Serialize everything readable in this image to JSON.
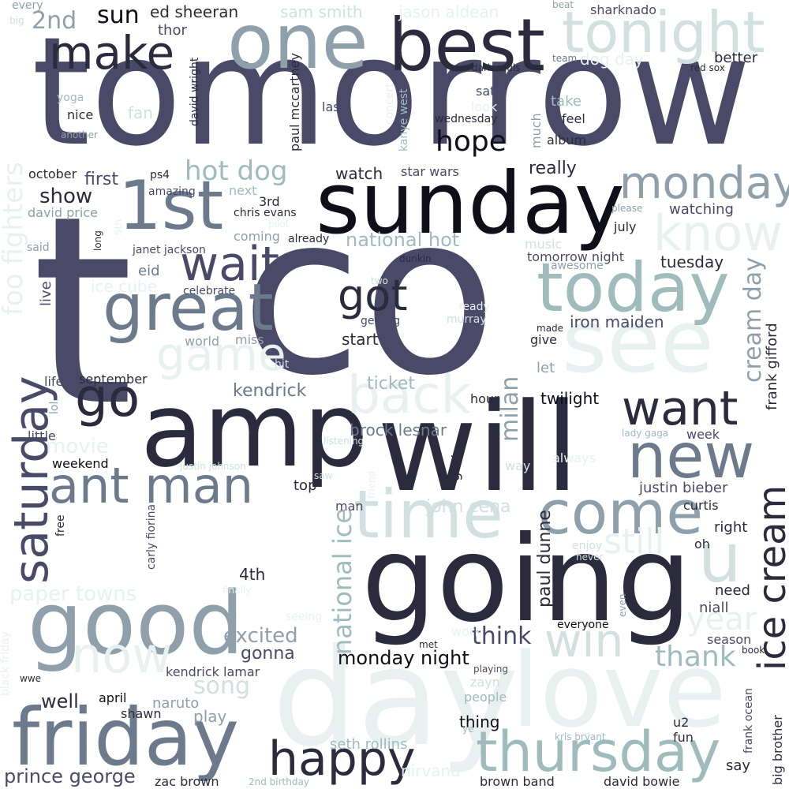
{
  "palette": {
    "darkest": "#0f0f1a",
    "dark": "#2b2b3d",
    "slate": "#4a4a68",
    "steel": "#6d7a8c",
    "grey_blue": "#8fa0aa",
    "sage": "#9fbbbb",
    "pale": "#d2e0df",
    "faint": "#e9f1f0"
  },
  "words": [
    {
      "text": "tomorrow"
    },
    {
      "text": "t"
    },
    {
      "text": "co"
    },
    {
      "text": "will"
    },
    {
      "text": "going"
    },
    {
      "text": "amp"
    },
    {
      "text": "sunday"
    },
    {
      "text": "day"
    },
    {
      "text": "love"
    },
    {
      "text": "good"
    },
    {
      "text": "friday"
    },
    {
      "text": "best"
    },
    {
      "text": "one"
    },
    {
      "text": "see"
    },
    {
      "text": "tonight"
    },
    {
      "text": "1st"
    },
    {
      "text": "great"
    },
    {
      "text": "today"
    },
    {
      "text": "time"
    },
    {
      "text": "new"
    },
    {
      "text": "come"
    },
    {
      "text": "thursday"
    },
    {
      "text": "u"
    },
    {
      "text": "monday"
    },
    {
      "text": "know"
    },
    {
      "text": "ant man"
    },
    {
      "text": "saturday"
    },
    {
      "text": "happy"
    },
    {
      "text": "ice cream"
    },
    {
      "text": "win"
    },
    {
      "text": "want"
    },
    {
      "text": "go"
    },
    {
      "text": "make"
    },
    {
      "text": "wait"
    },
    {
      "text": "got"
    },
    {
      "text": "hope"
    },
    {
      "text": "game"
    },
    {
      "text": "back"
    },
    {
      "text": "now"
    },
    {
      "text": "still"
    },
    {
      "text": "national ice"
    },
    {
      "text": "cream day"
    },
    {
      "text": "foo fighters"
    },
    {
      "text": "paper towns"
    },
    {
      "text": "thank"
    },
    {
      "text": "year"
    },
    {
      "text": "hot dog"
    },
    {
      "text": "milan"
    },
    {
      "text": "paul dunne"
    },
    {
      "text": "prince george"
    },
    {
      "text": "monday night"
    },
    {
      "text": "excited"
    },
    {
      "text": "think"
    },
    {
      "text": "song"
    },
    {
      "text": "kendrick"
    },
    {
      "text": "sun"
    },
    {
      "text": "2nd"
    },
    {
      "text": "ed sheeran"
    },
    {
      "text": "sam smith"
    },
    {
      "text": "jason aldean"
    },
    {
      "text": "sharknado"
    },
    {
      "text": "every"
    },
    {
      "text": "big"
    },
    {
      "text": "beat"
    },
    {
      "text": "thor"
    },
    {
      "text": "dog day"
    },
    {
      "text": "team"
    },
    {
      "text": "better"
    },
    {
      "text": "dark souls"
    },
    {
      "text": "red sox"
    },
    {
      "text": "david wright"
    },
    {
      "text": "paul mccartney"
    },
    {
      "text": "concert"
    },
    {
      "text": "kanye west"
    },
    {
      "text": "yoga"
    },
    {
      "text": "nice"
    },
    {
      "text": "fan"
    },
    {
      "text": "last"
    },
    {
      "text": "look"
    },
    {
      "text": "take"
    },
    {
      "text": "sat"
    },
    {
      "text": "much"
    },
    {
      "text": "feel"
    },
    {
      "text": "wednesday"
    },
    {
      "text": "album"
    },
    {
      "text": "another"
    },
    {
      "text": "october"
    },
    {
      "text": "ps4"
    },
    {
      "text": "first"
    },
    {
      "text": "show"
    },
    {
      "text": "amazing"
    },
    {
      "text": "next"
    },
    {
      "text": "watch"
    },
    {
      "text": "star wars"
    },
    {
      "text": "really"
    },
    {
      "text": "david price"
    },
    {
      "text": "3rd"
    },
    {
      "text": "chris evans"
    },
    {
      "text": "watching"
    },
    {
      "text": "please"
    },
    {
      "text": "5th"
    },
    {
      "text": "long"
    },
    {
      "text": "said"
    },
    {
      "text": "coming"
    },
    {
      "text": "already"
    },
    {
      "text": "national hot"
    },
    {
      "text": "july"
    },
    {
      "text": "janet jackson"
    },
    {
      "text": "dunkin"
    },
    {
      "text": "music"
    },
    {
      "text": "tomorrow night"
    },
    {
      "text": "tuesday"
    },
    {
      "text": "two"
    },
    {
      "text": "awesome"
    },
    {
      "text": "ice cube"
    },
    {
      "text": "eid"
    },
    {
      "text": "celebrate"
    },
    {
      "text": "live"
    },
    {
      "text": "ready"
    },
    {
      "text": "getting"
    },
    {
      "text": "murray"
    },
    {
      "text": "iron maiden"
    },
    {
      "text": "made"
    },
    {
      "text": "give"
    },
    {
      "text": "world"
    },
    {
      "text": "miss"
    },
    {
      "text": "start"
    },
    {
      "text": "frank gifford"
    },
    {
      "text": "hit"
    },
    {
      "text": "let"
    },
    {
      "text": "life"
    },
    {
      "text": "september"
    },
    {
      "text": "ticket"
    },
    {
      "text": "lol"
    },
    {
      "text": "hour"
    },
    {
      "text": "twilight"
    },
    {
      "text": "little"
    },
    {
      "text": "brock lesnar"
    },
    {
      "text": "listening"
    },
    {
      "text": "guy"
    },
    {
      "text": "lady gaga"
    },
    {
      "text": "week"
    },
    {
      "text": "movie"
    },
    {
      "text": "always"
    },
    {
      "text": "weekend"
    },
    {
      "text": "justin johnson"
    },
    {
      "text": "saw"
    },
    {
      "text": "friend"
    },
    {
      "text": "way"
    },
    {
      "text": "carly fiorina"
    },
    {
      "text": "top"
    },
    {
      "text": "justin bieber"
    },
    {
      "text": "free"
    },
    {
      "text": "man"
    },
    {
      "text": "john cena"
    },
    {
      "text": "curtis"
    },
    {
      "text": "right"
    },
    {
      "text": "oh"
    },
    {
      "text": "enjoy"
    },
    {
      "text": "never"
    },
    {
      "text": "finally"
    },
    {
      "text": "4th"
    },
    {
      "text": "need"
    },
    {
      "text": "even"
    },
    {
      "text": "niall"
    },
    {
      "text": "seeing"
    },
    {
      "text": "everyone"
    },
    {
      "text": "work"
    },
    {
      "text": "met"
    },
    {
      "text": "season"
    },
    {
      "text": "book"
    },
    {
      "text": "black friday"
    },
    {
      "text": "gonna"
    },
    {
      "text": "kendrick lamar"
    },
    {
      "text": "playing"
    },
    {
      "text": "wwe"
    },
    {
      "text": "zayn"
    },
    {
      "text": "frank ocean"
    },
    {
      "text": "well"
    },
    {
      "text": "april"
    },
    {
      "text": "naruto"
    },
    {
      "text": "people"
    },
    {
      "text": "shawn"
    },
    {
      "text": "play"
    },
    {
      "text": "thing"
    },
    {
      "text": "u2"
    },
    {
      "text": "ye"
    },
    {
      "text": "kris bryant"
    },
    {
      "text": "fun"
    },
    {
      "text": "seth rollins"
    },
    {
      "text": "nirvana"
    },
    {
      "text": "say"
    },
    {
      "text": "big brother"
    },
    {
      "text": "zac brown"
    },
    {
      "text": "2nd birthday"
    },
    {
      "text": "brown band"
    },
    {
      "text": "david bowie"
    },
    {
      "text": "pilot"
    }
  ]
}
